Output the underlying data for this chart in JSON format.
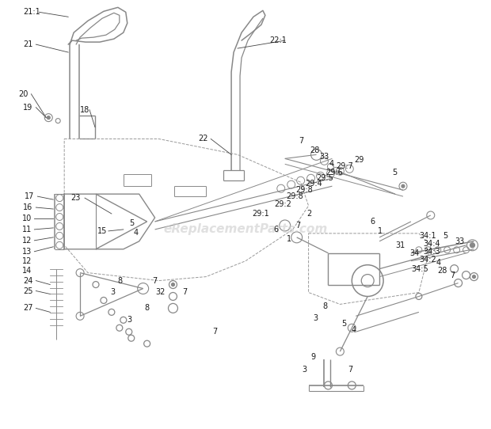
{
  "bg_color": "#ffffff",
  "line_color": "#888888",
  "label_color": "#1a1a1a",
  "watermark": "eReplacementParts.com",
  "watermark_color": "#cccccc",
  "figsize": [
    6.2,
    5.42
  ],
  "dpi": 100
}
